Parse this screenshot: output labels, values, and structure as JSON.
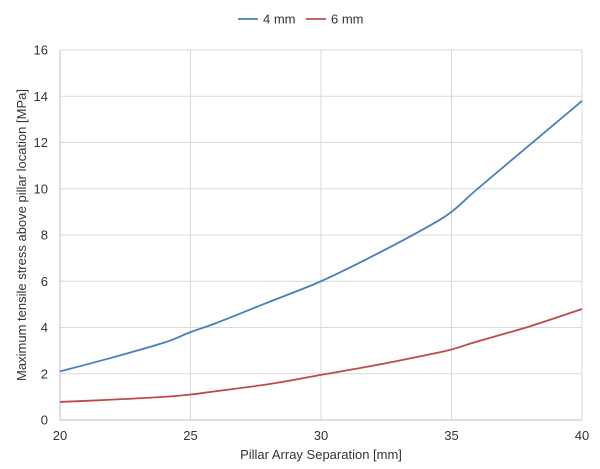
{
  "chart_data": {
    "type": "line",
    "title": "",
    "xlabel": "Pillar Array Separation [mm]",
    "ylabel": "Maximum tensile stress above pillar location [MPa]",
    "xlim": [
      20,
      40
    ],
    "ylim": [
      0,
      16
    ],
    "xticks": [
      20,
      25,
      30,
      35,
      40
    ],
    "yticks": [
      0,
      2,
      4,
      6,
      8,
      10,
      12,
      14,
      16
    ],
    "grid": true,
    "legend_position": "top-center",
    "series": [
      {
        "name": "4 mm",
        "color": "#4a7ebb",
        "x": [
          20,
          22,
          24,
          25,
          26,
          28,
          30,
          32,
          34,
          35,
          36,
          38,
          40
        ],
        "y": [
          2.1,
          2.7,
          3.35,
          3.8,
          4.2,
          5.1,
          6.0,
          7.1,
          8.3,
          9.0,
          10.0,
          11.9,
          13.8
        ]
      },
      {
        "name": "6 mm",
        "color": "#be4b48",
        "x": [
          20,
          22,
          24,
          25,
          26,
          28,
          30,
          32,
          34,
          35,
          36,
          38,
          40
        ],
        "y": [
          0.78,
          0.88,
          1.0,
          1.1,
          1.25,
          1.55,
          1.95,
          2.35,
          2.8,
          3.05,
          3.4,
          4.05,
          4.8
        ]
      }
    ]
  }
}
